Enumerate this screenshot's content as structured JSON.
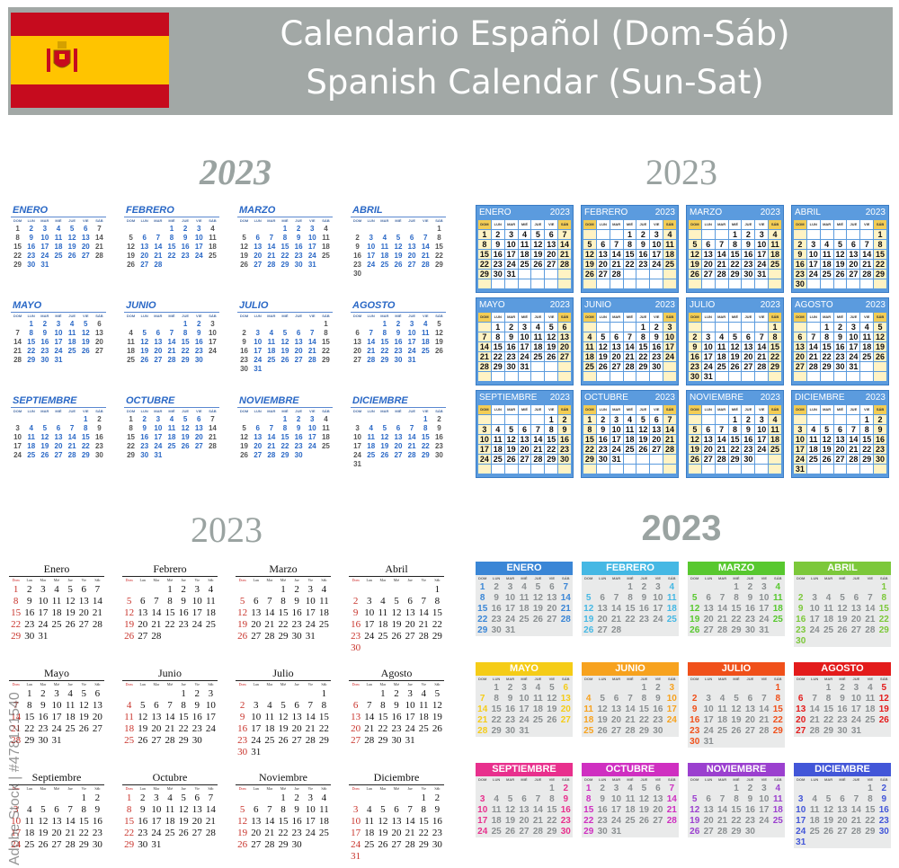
{
  "header": {
    "title_es": "Calendario Español (Dom-Sáb)",
    "title_en": "Spanish Calendar (Sun-Sat)"
  },
  "flag": {
    "name": "spain-flag-icon",
    "colors": {
      "red": "#c60b1e",
      "yellow": "#ffc400"
    }
  },
  "watermark": "Adobe Stock | #478121540",
  "year": "2023",
  "weekdays": [
    "DOM",
    "LUN",
    "MAR",
    "MIÉ",
    "JUE",
    "VIE",
    "SÁB"
  ],
  "weekdays_serif": [
    "Dom",
    "Lun",
    "Mar",
    "Mié",
    "Jue",
    "Vie",
    "Sáb"
  ],
  "months_upper": [
    "ENERO",
    "FEBRERO",
    "MARZO",
    "ABRIL",
    "MAYO",
    "JUNIO",
    "JULIO",
    "AGOSTO",
    "SEPTIEMBRE",
    "OCTUBRE",
    "NOVIEMBRE",
    "DICIEMBRE"
  ],
  "months_title": [
    "Enero",
    "Febrero",
    "Marzo",
    "Abril",
    "Mayo",
    "Junio",
    "Julio",
    "Agosto",
    "Septiembre",
    "Octubre",
    "Noviembre",
    "Diciembre"
  ],
  "month_days": [
    31,
    28,
    31,
    30,
    31,
    30,
    31,
    31,
    30,
    31,
    30,
    31
  ],
  "month_start_weekday": [
    0,
    3,
    3,
    6,
    1,
    4,
    6,
    2,
    5,
    0,
    3,
    5
  ],
  "colors": {
    "header_gray": "#a2a8a6",
    "q1_blue": "#2a68c6",
    "q2_blue": "#5b9bde",
    "q2_weekend": "#fff3c4",
    "sunday_red": "#c8322a",
    "q4_month_colors": [
      "#3a86d6",
      "#45b8e4",
      "#58c82f",
      "#7cc83a",
      "#f5cc17",
      "#f7a21e",
      "#f0501a",
      "#e31b1b",
      "#e8308d",
      "#cf2fc1",
      "#9b40cf",
      "#4256d8"
    ]
  }
}
